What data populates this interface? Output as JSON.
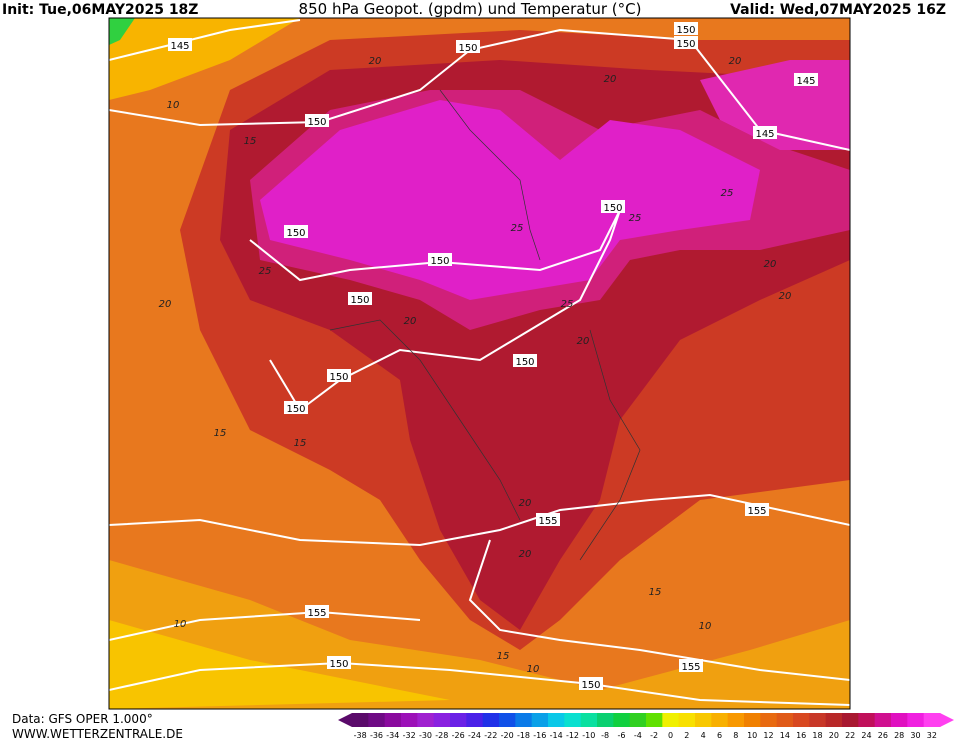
{
  "header": {
    "init": "Init: Tue,06MAY2025 18Z",
    "title": "850 hPa Geopot. (gpdm) und Temperatur (°C)",
    "valid": "Valid: Wed,07MAY2025 16Z"
  },
  "footer": {
    "data": "Data: GFS OPER 1.000°",
    "site": "WWW.WETTERZENTRALE.DE"
  },
  "colorbar": {
    "labels": [
      -38,
      -36,
      -34,
      -32,
      -30,
      -28,
      -26,
      -24,
      -22,
      -20,
      -18,
      -16,
      -14,
      -12,
      -10,
      -8,
      -6,
      -4,
      -2,
      0,
      2,
      4,
      6,
      8,
      10,
      12,
      14,
      16,
      18,
      20,
      22,
      24,
      26,
      28,
      30,
      32
    ],
    "colors": [
      "#5a0a6a",
      "#6e0a84",
      "#8a0a9e",
      "#9c10b8",
      "#a020d0",
      "#8a20e0",
      "#6a20e6",
      "#4a20e8",
      "#2030e8",
      "#1050e8",
      "#0a7ae8",
      "#0aa0e8",
      "#0ac8e8",
      "#0ae0d0",
      "#0ae0a0",
      "#0ad070",
      "#10d040",
      "#30d020",
      "#60e000",
      "#f0f000",
      "#f8e000",
      "#f8c800",
      "#f8b000",
      "#f89800",
      "#f08000",
      "#e86a10",
      "#e05a18",
      "#d84820",
      "#c83828",
      "#b82828",
      "#a81830",
      "#c0105a",
      "#d01090",
      "#e010c0",
      "#f020e0",
      "#ff40f0"
    ]
  },
  "geopotential_labels": [
    145,
    150,
    150,
    150,
    145,
    145,
    150,
    150,
    150,
    150,
    150,
    150,
    150,
    150,
    155,
    155,
    155,
    150,
    155,
    150
  ],
  "temperature_labels": [
    20,
    20,
    20,
    10,
    15,
    25,
    25,
    25,
    25,
    20,
    20,
    25,
    20,
    20,
    20,
    15,
    15,
    20,
    20,
    15,
    10,
    10,
    15,
    10
  ]
}
